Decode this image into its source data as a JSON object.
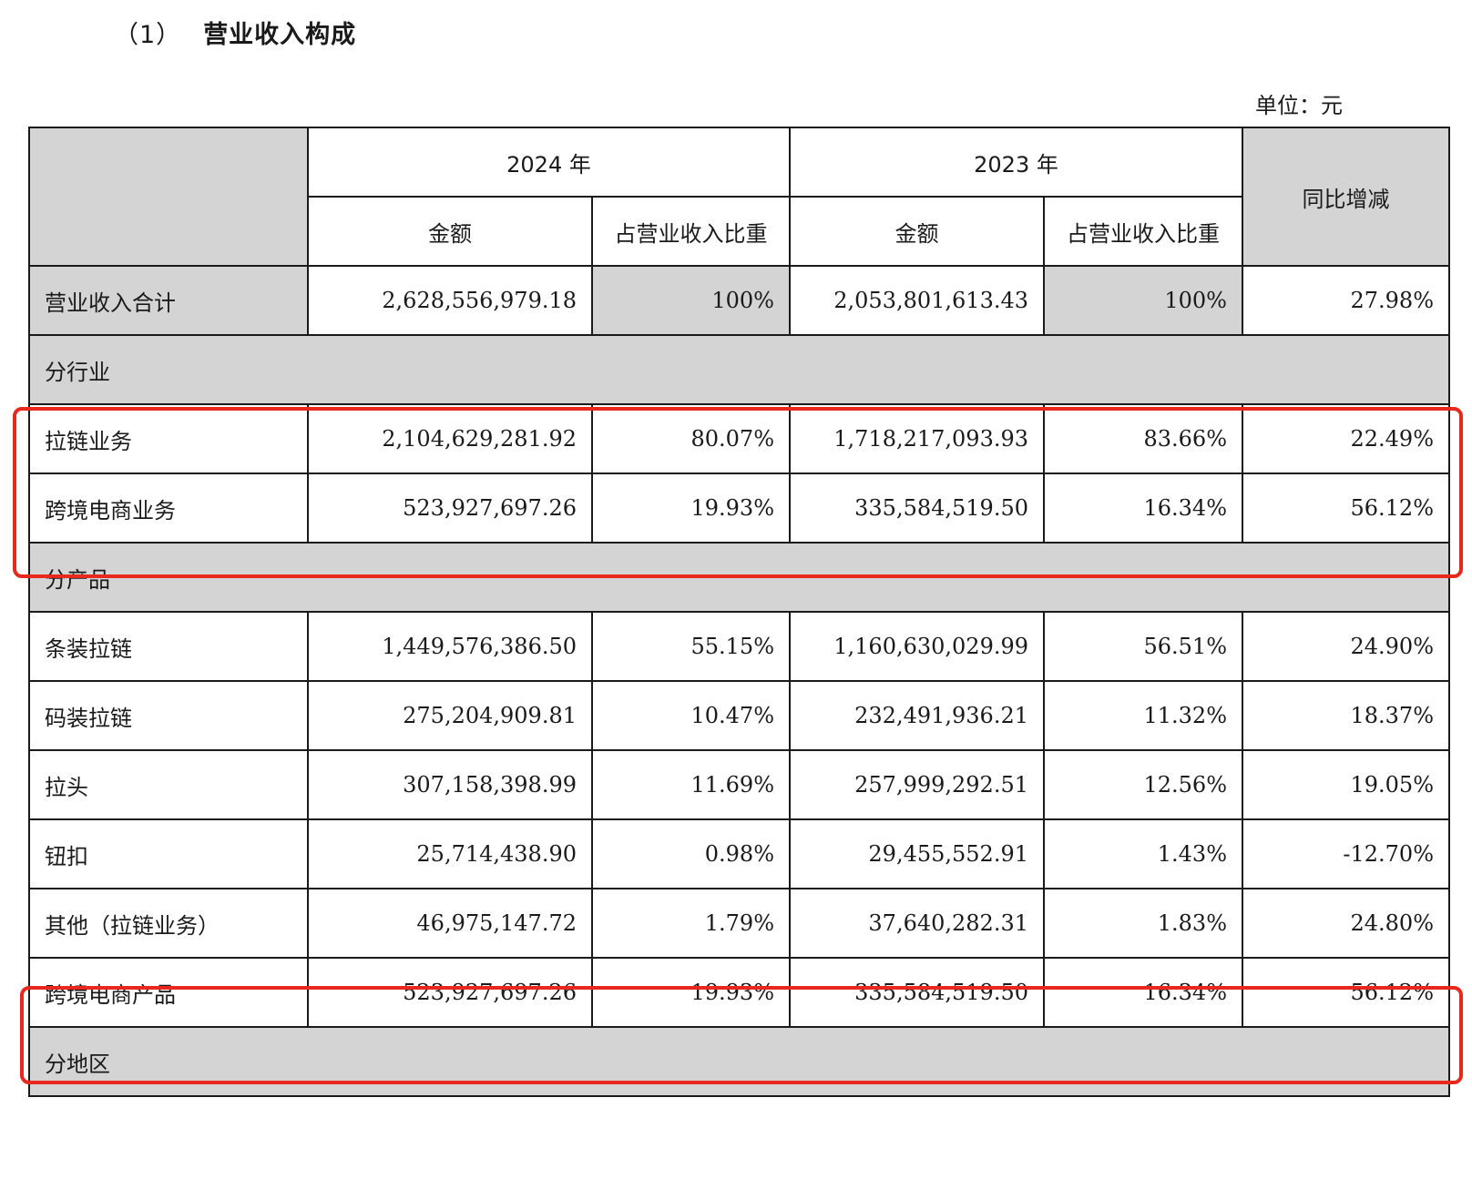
{
  "heading": {
    "number": "（1）",
    "text": "营业收入构成"
  },
  "unit_label": "单位：元",
  "table": {
    "year_2024": "2024 年",
    "year_2023": "2023 年",
    "amount": "金额",
    "share": "占营业收入比重",
    "yoy": "同比增减",
    "total": {
      "label": "营业收入合计",
      "amt_2024": "2,628,556,979.18",
      "pct_2024": "100%",
      "amt_2023": "2,053,801,613.43",
      "pct_2023": "100%",
      "yoy": "27.98%"
    },
    "section_industry": "分行业",
    "industry_rows": [
      {
        "label": "拉链业务",
        "amt_2024": "2,104,629,281.92",
        "pct_2024": "80.07%",
        "amt_2023": "1,718,217,093.93",
        "pct_2023": "83.66%",
        "yoy": "22.49%"
      },
      {
        "label": "跨境电商业务",
        "amt_2024": "523,927,697.26",
        "pct_2024": "19.93%",
        "amt_2023": "335,584,519.50",
        "pct_2023": "16.34%",
        "yoy": "56.12%"
      }
    ],
    "section_product": "分产品",
    "product_rows": [
      {
        "label": "条装拉链",
        "amt_2024": "1,449,576,386.50",
        "pct_2024": "55.15%",
        "amt_2023": "1,160,630,029.99",
        "pct_2023": "56.51%",
        "yoy": "24.90%"
      },
      {
        "label": "码装拉链",
        "amt_2024": "275,204,909.81",
        "pct_2024": "10.47%",
        "amt_2023": "232,491,936.21",
        "pct_2023": "11.32%",
        "yoy": "18.37%"
      },
      {
        "label": "拉头",
        "amt_2024": "307,158,398.99",
        "pct_2024": "11.69%",
        "amt_2023": "257,999,292.51",
        "pct_2023": "12.56%",
        "yoy": "19.05%"
      },
      {
        "label": "钮扣",
        "amt_2024": "25,714,438.90",
        "pct_2024": "0.98%",
        "amt_2023": "29,455,552.91",
        "pct_2023": "1.43%",
        "yoy": "-12.70%"
      },
      {
        "label": "其他（拉链业务）",
        "amt_2024": "46,975,147.72",
        "pct_2024": "1.79%",
        "amt_2023": "37,640,282.31",
        "pct_2023": "1.83%",
        "yoy": "24.80%"
      },
      {
        "label": "跨境电商产品",
        "amt_2024": "523,927,697.26",
        "pct_2024": "19.93%",
        "amt_2023": "335,584,519.50",
        "pct_2023": "16.34%",
        "yoy": "56.12%"
      }
    ],
    "section_region": "分地区"
  },
  "annotation_color": "#e8281c"
}
